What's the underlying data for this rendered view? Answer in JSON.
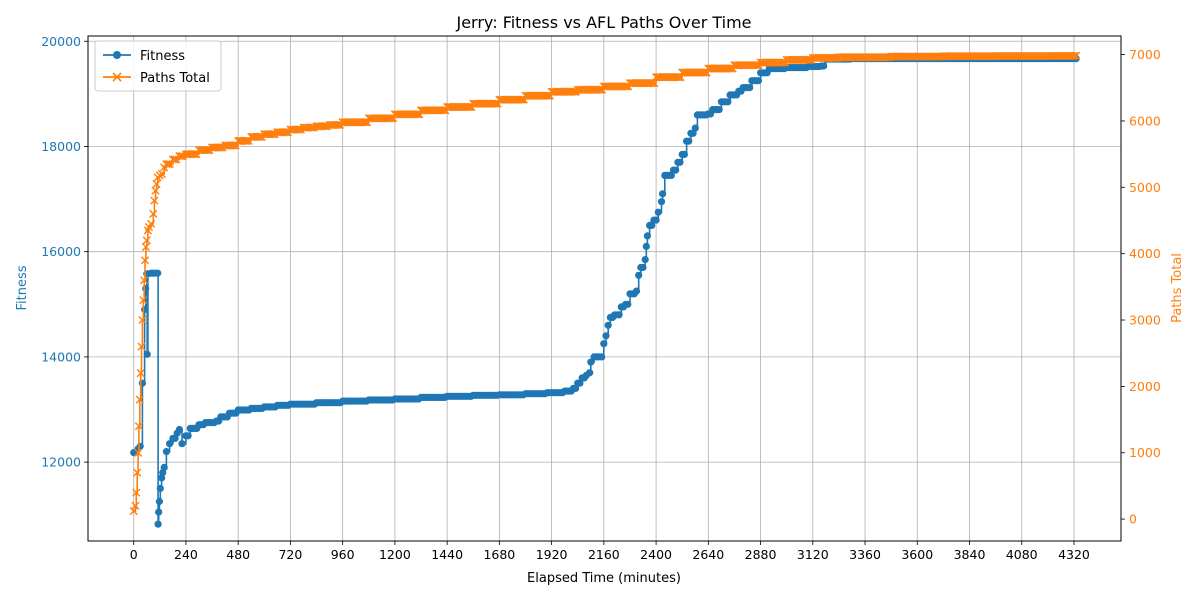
{
  "chart_data": {
    "type": "line",
    "title": "Jerry: Fitness vs AFL Paths Over Time",
    "xlabel": "Elapsed Time (minutes)",
    "ylabel_left": "Fitness",
    "ylabel_right": "Paths Total",
    "xlim": [
      -210,
      4536
    ],
    "ylim_left": [
      10500,
      20100
    ],
    "ylim_right": [
      -330,
      7280
    ],
    "x_ticks": [
      0,
      240,
      480,
      720,
      960,
      1200,
      1440,
      1680,
      1920,
      2160,
      2400,
      2640,
      2880,
      3120,
      3360,
      3600,
      3840,
      4080,
      4320
    ],
    "y_ticks_left": [
      12000,
      14000,
      16000,
      18000,
      20000
    ],
    "y_ticks_right": [
      0,
      1000,
      2000,
      3000,
      4000,
      5000,
      6000,
      7000
    ],
    "grid": true,
    "legend_position": "top-left",
    "colors": {
      "fitness": "#1f77b4",
      "paths": "#ff7f0e"
    },
    "series": [
      {
        "name": "Fitness",
        "axis": "left",
        "marker": "circle",
        "color": "#1f77b4",
        "points": [
          [
            0,
            12180
          ],
          [
            10,
            12190
          ],
          [
            20,
            12250
          ],
          [
            30,
            12300
          ],
          [
            40,
            13500
          ],
          [
            50,
            14900
          ],
          [
            55,
            15300
          ],
          [
            60,
            15580
          ],
          [
            62,
            14050
          ],
          [
            65,
            15580
          ],
          [
            80,
            15590
          ],
          [
            100,
            15590
          ],
          [
            110,
            15590
          ],
          [
            112,
            10820
          ],
          [
            115,
            11050
          ],
          [
            118,
            11250
          ],
          [
            122,
            11500
          ],
          [
            128,
            11700
          ],
          [
            133,
            11800
          ],
          [
            140,
            11900
          ],
          [
            150,
            12200
          ],
          [
            165,
            12350
          ],
          [
            180,
            12450
          ],
          [
            200,
            12550
          ],
          [
            210,
            12620
          ],
          [
            222,
            12350
          ],
          [
            240,
            12500
          ],
          [
            260,
            12640
          ],
          [
            300,
            12710
          ],
          [
            330,
            12750
          ],
          [
            380,
            12780
          ],
          [
            400,
            12860
          ],
          [
            440,
            12930
          ],
          [
            480,
            12990
          ],
          [
            540,
            13020
          ],
          [
            600,
            13050
          ],
          [
            660,
            13080
          ],
          [
            720,
            13100
          ],
          [
            840,
            13130
          ],
          [
            960,
            13160
          ],
          [
            1080,
            13180
          ],
          [
            1200,
            13200
          ],
          [
            1320,
            13230
          ],
          [
            1440,
            13250
          ],
          [
            1560,
            13270
          ],
          [
            1680,
            13280
          ],
          [
            1800,
            13300
          ],
          [
            1900,
            13320
          ],
          [
            1980,
            13350
          ],
          [
            2020,
            13400
          ],
          [
            2040,
            13500
          ],
          [
            2060,
            13600
          ],
          [
            2080,
            13650
          ],
          [
            2095,
            13700
          ],
          [
            2100,
            13900
          ],
          [
            2115,
            14000
          ],
          [
            2150,
            14000
          ],
          [
            2160,
            14250
          ],
          [
            2170,
            14400
          ],
          [
            2180,
            14600
          ],
          [
            2190,
            14750
          ],
          [
            2210,
            14800
          ],
          [
            2240,
            14950
          ],
          [
            2260,
            15000
          ],
          [
            2280,
            15200
          ],
          [
            2310,
            15250
          ],
          [
            2320,
            15550
          ],
          [
            2330,
            15700
          ],
          [
            2350,
            15850
          ],
          [
            2355,
            16100
          ],
          [
            2360,
            16300
          ],
          [
            2370,
            16500
          ],
          [
            2390,
            16600
          ],
          [
            2410,
            16750
          ],
          [
            2425,
            16950
          ],
          [
            2430,
            17100
          ],
          [
            2440,
            17450
          ],
          [
            2460,
            17450
          ],
          [
            2480,
            17550
          ],
          [
            2500,
            17700
          ],
          [
            2520,
            17850
          ],
          [
            2540,
            18100
          ],
          [
            2560,
            18250
          ],
          [
            2580,
            18350
          ],
          [
            2590,
            18600
          ],
          [
            2640,
            18620
          ],
          [
            2660,
            18700
          ],
          [
            2700,
            18850
          ],
          [
            2740,
            18980
          ],
          [
            2780,
            19050
          ],
          [
            2800,
            19120
          ],
          [
            2840,
            19250
          ],
          [
            2880,
            19400
          ],
          [
            2920,
            19480
          ],
          [
            3000,
            19500
          ],
          [
            3100,
            19520
          ],
          [
            3160,
            19530
          ],
          [
            3180,
            19660
          ],
          [
            3300,
            19670
          ],
          [
            3600,
            19670
          ],
          [
            3900,
            19670
          ],
          [
            4200,
            19670
          ],
          [
            4330,
            19670
          ]
        ]
      },
      {
        "name": "Paths Total",
        "axis": "right",
        "marker": "x",
        "color": "#ff7f0e",
        "points": [
          [
            0,
            120
          ],
          [
            8,
            200
          ],
          [
            12,
            400
          ],
          [
            16,
            700
          ],
          [
            20,
            1000
          ],
          [
            24,
            1400
          ],
          [
            28,
            1800
          ],
          [
            32,
            2200
          ],
          [
            36,
            2600
          ],
          [
            40,
            3000
          ],
          [
            44,
            3300
          ],
          [
            48,
            3600
          ],
          [
            52,
            3900
          ],
          [
            56,
            4100
          ],
          [
            60,
            4200
          ],
          [
            65,
            4350
          ],
          [
            70,
            4400
          ],
          [
            80,
            4450
          ],
          [
            90,
            4600
          ],
          [
            95,
            4800
          ],
          [
            100,
            4950
          ],
          [
            105,
            5050
          ],
          [
            110,
            5150
          ],
          [
            120,
            5180
          ],
          [
            130,
            5200
          ],
          [
            140,
            5300
          ],
          [
            150,
            5350
          ],
          [
            180,
            5420
          ],
          [
            210,
            5470
          ],
          [
            240,
            5500
          ],
          [
            300,
            5560
          ],
          [
            360,
            5600
          ],
          [
            420,
            5630
          ],
          [
            480,
            5700
          ],
          [
            540,
            5760
          ],
          [
            600,
            5800
          ],
          [
            660,
            5830
          ],
          [
            720,
            5870
          ],
          [
            780,
            5900
          ],
          [
            840,
            5920
          ],
          [
            900,
            5940
          ],
          [
            960,
            5980
          ],
          [
            1080,
            6040
          ],
          [
            1200,
            6100
          ],
          [
            1320,
            6160
          ],
          [
            1440,
            6210
          ],
          [
            1560,
            6260
          ],
          [
            1680,
            6320
          ],
          [
            1800,
            6380
          ],
          [
            1920,
            6440
          ],
          [
            2040,
            6470
          ],
          [
            2160,
            6520
          ],
          [
            2280,
            6570
          ],
          [
            2400,
            6660
          ],
          [
            2520,
            6730
          ],
          [
            2640,
            6790
          ],
          [
            2760,
            6840
          ],
          [
            2880,
            6880
          ],
          [
            3000,
            6920
          ],
          [
            3120,
            6950
          ],
          [
            3240,
            6960
          ],
          [
            3480,
            6970
          ],
          [
            3720,
            6975
          ],
          [
            3960,
            6978
          ],
          [
            4200,
            6980
          ],
          [
            4330,
            6982
          ]
        ]
      }
    ]
  }
}
